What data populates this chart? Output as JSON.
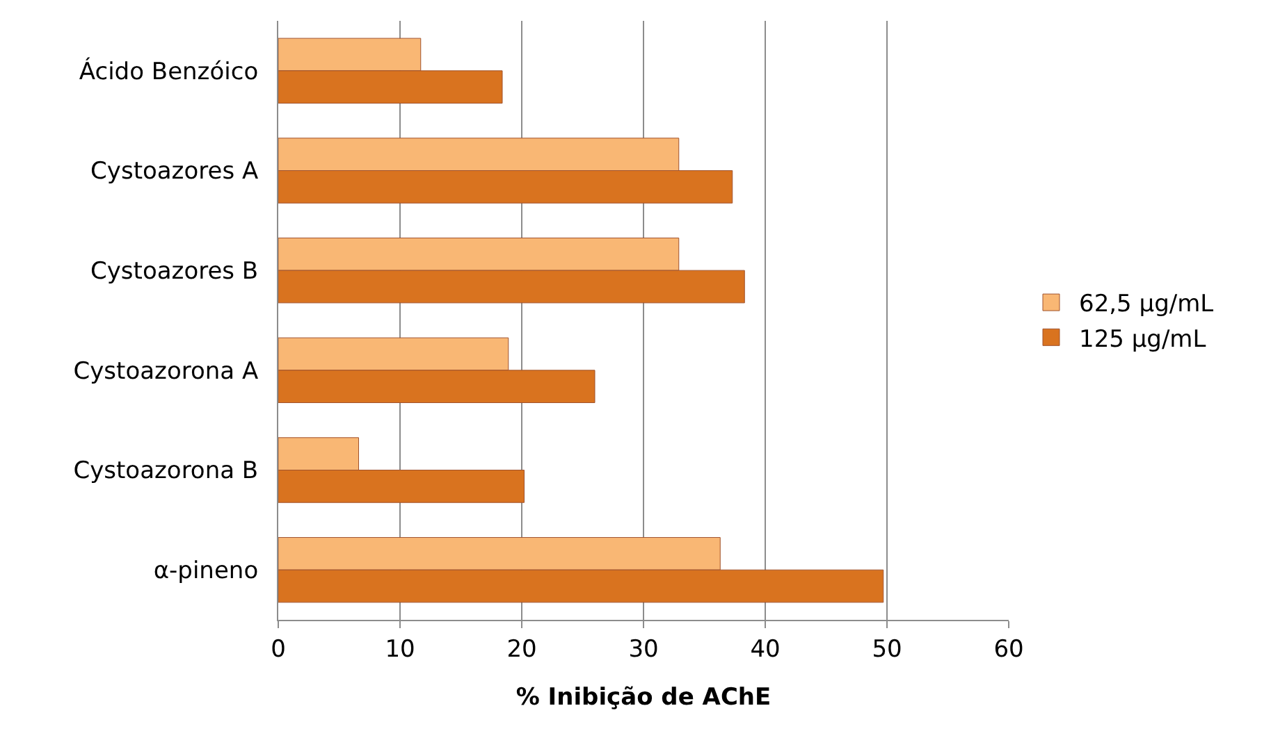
{
  "chart_data": {
    "type": "bar",
    "orientation": "horizontal",
    "xlabel": "% Inibição de AChE",
    "categories": [
      "Ácido Benzóico",
      "Cystoazores A",
      "Cystoazores B",
      "Cystoazorona A",
      "Cystoazorona B",
      "α-pineno"
    ],
    "series": [
      {
        "name": "62,5 µg/mL",
        "color": "#f9b774",
        "values": [
          11.7,
          32.9,
          32.9,
          18.9,
          6.6,
          36.3
        ]
      },
      {
        "name": "125 µg/mL",
        "color": "#d9731f",
        "values": [
          18.4,
          37.3,
          38.3,
          26.0,
          20.2,
          49.7
        ]
      }
    ],
    "xlim": [
      0,
      60
    ],
    "xticks": [
      0,
      10,
      20,
      30,
      40,
      50,
      60
    ],
    "grid": "x",
    "legend": "right"
  }
}
